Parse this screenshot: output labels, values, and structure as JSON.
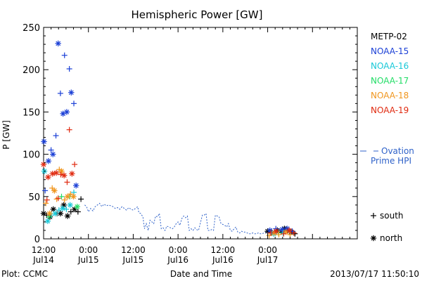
{
  "chart_data": {
    "type": "scatter",
    "title": "Hemispheric Power [GW]",
    "ylabel": "P [GW]",
    "xlabel": "Date and Time",
    "ylim": [
      0,
      250
    ],
    "yticks": [
      0,
      50,
      100,
      150,
      200,
      250
    ],
    "xlim_hours": [
      12,
      96
    ],
    "x_ticks": [
      {
        "hour": 12,
        "time": "12:00",
        "day": "Jul14"
      },
      {
        "hour": 24,
        "time": "0:00",
        "day": "Jul15"
      },
      {
        "hour": 36,
        "time": "12:00",
        "day": "Jul15"
      },
      {
        "hour": 48,
        "time": "0:00",
        "day": "Jul16"
      },
      {
        "hour": 60,
        "time": "12:00",
        "day": "Jul16"
      },
      {
        "hour": 72,
        "time": "0:00",
        "day": "Jul17"
      }
    ],
    "footer_left": "Plot: CCMC",
    "footer_right": "2013/07/17 11:50:10",
    "legend": [
      {
        "name": "METP-02",
        "color": "#000000"
      },
      {
        "name": "NOAA-15",
        "color": "#1a3fd6"
      },
      {
        "name": "NOAA-16",
        "color": "#18c8d8"
      },
      {
        "name": "NOAA-17",
        "color": "#22dd66"
      },
      {
        "name": "NOAA-18",
        "color": "#f0961e"
      },
      {
        "name": "NOAA-19",
        "color": "#e02a10"
      }
    ],
    "ovation_label_line1": "Ovation",
    "ovation_label_line2": "Prime HPI",
    "ovation_color": "#2f62c9",
    "marker_legend": {
      "south": "south",
      "north": "north"
    },
    "ovation_series": [
      [
        23.0,
        40
      ],
      [
        23.5,
        38
      ],
      [
        24.0,
        32
      ],
      [
        24.6,
        36
      ],
      [
        25.2,
        33
      ],
      [
        25.8,
        38
      ],
      [
        26.4,
        40
      ],
      [
        27.0,
        42
      ],
      [
        27.6,
        38
      ],
      [
        28.2,
        41
      ],
      [
        28.8,
        39
      ],
      [
        29.4,
        40
      ],
      [
        30.0,
        39
      ],
      [
        30.6,
        38
      ],
      [
        31.2,
        36
      ],
      [
        31.8,
        37
      ],
      [
        32.4,
        35
      ],
      [
        33.0,
        38
      ],
      [
        33.6,
        36
      ],
      [
        34.2,
        34
      ],
      [
        34.8,
        37
      ],
      [
        35.4,
        35
      ],
      [
        36.0,
        34
      ],
      [
        36.6,
        36
      ],
      [
        37.2,
        38
      ],
      [
        37.5,
        31
      ],
      [
        38.0,
        30
      ],
      [
        38.6,
        26
      ],
      [
        39.0,
        12
      ],
      [
        39.5,
        18
      ],
      [
        40.0,
        10
      ],
      [
        40.5,
        22
      ],
      [
        41.0,
        20
      ],
      [
        41.5,
        18
      ],
      [
        42.0,
        27
      ],
      [
        42.5,
        26
      ],
      [
        43.0,
        30
      ],
      [
        43.5,
        12
      ],
      [
        44.0,
        13
      ],
      [
        44.5,
        10
      ],
      [
        45.0,
        15
      ],
      [
        45.5,
        14
      ],
      [
        46.0,
        13
      ],
      [
        46.5,
        12
      ],
      [
        47.0,
        14
      ],
      [
        47.5,
        18
      ],
      [
        48.0,
        20
      ],
      [
        48.5,
        16
      ],
      [
        49.0,
        24
      ],
      [
        49.5,
        27
      ],
      [
        50.0,
        25
      ],
      [
        50.5,
        27
      ],
      [
        51.0,
        10
      ],
      [
        51.5,
        12
      ],
      [
        52.0,
        10
      ],
      [
        52.5,
        13
      ],
      [
        53.0,
        11
      ],
      [
        53.5,
        10
      ],
      [
        54.0,
        19
      ],
      [
        54.5,
        28
      ],
      [
        55.0,
        28
      ],
      [
        55.5,
        30
      ],
      [
        56.0,
        10
      ],
      [
        56.5,
        10
      ],
      [
        57.0,
        11
      ],
      [
        57.5,
        10
      ],
      [
        58.0,
        28
      ],
      [
        58.5,
        27
      ],
      [
        59.0,
        26
      ],
      [
        59.5,
        18
      ],
      [
        60.0,
        17
      ],
      [
        60.5,
        16
      ],
      [
        61.0,
        14
      ],
      [
        61.5,
        18
      ],
      [
        62.0,
        10
      ],
      [
        62.5,
        9
      ],
      [
        63.0,
        12
      ],
      [
        63.5,
        14
      ],
      [
        64.0,
        8
      ],
      [
        64.5,
        7
      ],
      [
        65.0,
        9
      ],
      [
        65.5,
        8
      ],
      [
        66.0,
        8
      ],
      [
        66.5,
        7
      ],
      [
        67.0,
        6
      ],
      [
        67.5,
        6
      ],
      [
        68.0,
        7
      ],
      [
        68.5,
        6
      ],
      [
        69.0,
        6
      ],
      [
        69.5,
        7
      ],
      [
        70.0,
        6
      ],
      [
        70.5,
        6
      ],
      [
        71.0,
        7
      ],
      [
        71.5,
        8
      ],
      [
        72.0,
        9
      ],
      [
        72.5,
        8
      ],
      [
        73.0,
        10
      ],
      [
        73.5,
        9
      ],
      [
        74.0,
        7
      ],
      [
        74.5,
        10
      ],
      [
        75.0,
        8
      ],
      [
        75.5,
        10
      ],
      [
        76.0,
        9
      ],
      [
        76.5,
        10
      ],
      [
        77.0,
        9
      ],
      [
        77.5,
        11
      ],
      [
        78.0,
        8
      ],
      [
        78.5,
        6
      ],
      [
        79.0,
        4
      ]
    ],
    "series": [
      {
        "name": "METP-02",
        "color": "#000000",
        "points": [
          {
            "x": 12.0,
            "y": 30,
            "m": "n"
          },
          {
            "x": 12.8,
            "y": 28,
            "m": "s"
          },
          {
            "x": 13.7,
            "y": 26,
            "m": "n"
          },
          {
            "x": 14.6,
            "y": 35,
            "m": "n"
          },
          {
            "x": 15.6,
            "y": 30,
            "m": "s"
          },
          {
            "x": 16.5,
            "y": 30,
            "m": "n"
          },
          {
            "x": 17.4,
            "y": 40,
            "m": "n"
          },
          {
            "x": 18.4,
            "y": 27,
            "m": "n"
          },
          {
            "x": 19.3,
            "y": 32,
            "m": "s"
          },
          {
            "x": 20.3,
            "y": 35,
            "m": "n"
          },
          {
            "x": 21.2,
            "y": 32,
            "m": "s"
          },
          {
            "x": 22.0,
            "y": 47,
            "m": "s"
          },
          {
            "x": 72.0,
            "y": 9,
            "m": "n"
          },
          {
            "x": 73.0,
            "y": 8,
            "m": "s"
          },
          {
            "x": 74.6,
            "y": 10,
            "m": "n"
          },
          {
            "x": 75.6,
            "y": 8,
            "m": "s"
          },
          {
            "x": 76.5,
            "y": 12,
            "m": "n"
          },
          {
            "x": 77.4,
            "y": 10,
            "m": "s"
          },
          {
            "x": 78.3,
            "y": 8,
            "m": "n"
          },
          {
            "x": 79.3,
            "y": 6,
            "m": "s"
          }
        ]
      },
      {
        "name": "NOAA-15",
        "color": "#1a3fd6",
        "points": [
          {
            "x": 12.1,
            "y": 115,
            "m": "n"
          },
          {
            "x": 12.4,
            "y": 57,
            "m": "s"
          },
          {
            "x": 13.3,
            "y": 92,
            "m": "n"
          },
          {
            "x": 14.0,
            "y": 105,
            "m": "s"
          },
          {
            "x": 14.5,
            "y": 100,
            "m": "n"
          },
          {
            "x": 15.3,
            "y": 122,
            "m": "s"
          },
          {
            "x": 15.9,
            "y": 231,
            "m": "n"
          },
          {
            "x": 16.5,
            "y": 172,
            "m": "s"
          },
          {
            "x": 17.2,
            "y": 148,
            "m": "n"
          },
          {
            "x": 17.6,
            "y": 217,
            "m": "s"
          },
          {
            "x": 18.2,
            "y": 150,
            "m": "n"
          },
          {
            "x": 18.9,
            "y": 201,
            "m": "s"
          },
          {
            "x": 19.4,
            "y": 173,
            "m": "n"
          },
          {
            "x": 20.1,
            "y": 160,
            "m": "s"
          },
          {
            "x": 20.7,
            "y": 63,
            "m": "n"
          },
          {
            "x": 72.6,
            "y": 10,
            "m": "n"
          },
          {
            "x": 74.2,
            "y": 12,
            "m": "s"
          },
          {
            "x": 75.9,
            "y": 11,
            "m": "n"
          },
          {
            "x": 77.2,
            "y": 12,
            "m": "n"
          },
          {
            "x": 78.6,
            "y": 9,
            "m": "s"
          }
        ]
      },
      {
        "name": "NOAA-16",
        "color": "#18c8d8",
        "points": [
          {
            "x": 12.2,
            "y": 80,
            "m": "n"
          },
          {
            "x": 13.1,
            "y": 21,
            "m": "n"
          },
          {
            "x": 14.1,
            "y": 28,
            "m": "s"
          },
          {
            "x": 15.1,
            "y": 30,
            "m": "n"
          },
          {
            "x": 16.1,
            "y": 34,
            "m": "s"
          },
          {
            "x": 17.1,
            "y": 36,
            "m": "n"
          },
          {
            "x": 18.1,
            "y": 35,
            "m": "s"
          },
          {
            "x": 19.1,
            "y": 40,
            "m": "n"
          },
          {
            "x": 20.1,
            "y": 55,
            "m": "s"
          },
          {
            "x": 73.6,
            "y": 6,
            "m": "n"
          },
          {
            "x": 76.1,
            "y": 7,
            "m": "s"
          }
        ]
      },
      {
        "name": "NOAA-17",
        "color": "#22dd66",
        "points": [
          {
            "x": 13.5,
            "y": 26,
            "m": "s"
          },
          {
            "x": 16.8,
            "y": 50,
            "m": "s"
          },
          {
            "x": 19.0,
            "y": 50,
            "m": "s"
          },
          {
            "x": 21.0,
            "y": 38,
            "m": "n"
          },
          {
            "x": 74.9,
            "y": 7,
            "m": "s"
          }
        ]
      },
      {
        "name": "NOAA-18",
        "color": "#f0961e",
        "points": [
          {
            "x": 12.6,
            "y": 42,
            "m": "s"
          },
          {
            "x": 13.6,
            "y": 30,
            "m": "n"
          },
          {
            "x": 14.3,
            "y": 60,
            "m": "s"
          },
          {
            "x": 14.9,
            "y": 57,
            "m": "n"
          },
          {
            "x": 15.5,
            "y": 47,
            "m": "s"
          },
          {
            "x": 16.2,
            "y": 82,
            "m": "s"
          },
          {
            "x": 16.8,
            "y": 80,
            "m": "n"
          },
          {
            "x": 17.6,
            "y": 46,
            "m": "s"
          },
          {
            "x": 18.4,
            "y": 50,
            "m": "n"
          },
          {
            "x": 19.2,
            "y": 53,
            "m": "s"
          },
          {
            "x": 20.0,
            "y": 50,
            "m": "n"
          },
          {
            "x": 72.4,
            "y": 4,
            "m": "s"
          },
          {
            "x": 73.7,
            "y": 7,
            "m": "n"
          },
          {
            "x": 75.0,
            "y": 5,
            "m": "s"
          },
          {
            "x": 76.9,
            "y": 8,
            "m": "n"
          },
          {
            "x": 78.0,
            "y": 5,
            "m": "s"
          }
        ]
      },
      {
        "name": "NOAA-19",
        "color": "#e02a10",
        "points": [
          {
            "x": 12.0,
            "y": 88,
            "m": "n"
          },
          {
            "x": 12.9,
            "y": 46,
            "m": "s"
          },
          {
            "x": 13.2,
            "y": 73,
            "m": "n"
          },
          {
            "x": 14.4,
            "y": 77,
            "m": "n"
          },
          {
            "x": 15.4,
            "y": 78,
            "m": "n"
          },
          {
            "x": 15.9,
            "y": 48,
            "m": "s"
          },
          {
            "x": 16.6,
            "y": 76,
            "m": "s"
          },
          {
            "x": 17.5,
            "y": 75,
            "m": "n"
          },
          {
            "x": 18.3,
            "y": 67,
            "m": "s"
          },
          {
            "x": 18.9,
            "y": 129,
            "m": "s"
          },
          {
            "x": 19.6,
            "y": 77,
            "m": "n"
          },
          {
            "x": 20.3,
            "y": 88,
            "m": "s"
          },
          {
            "x": 72.8,
            "y": 7,
            "m": "s"
          },
          {
            "x": 74.3,
            "y": 9,
            "m": "n"
          },
          {
            "x": 76.3,
            "y": 6,
            "m": "s"
          },
          {
            "x": 77.8,
            "y": 10,
            "m": "n"
          },
          {
            "x": 79.0,
            "y": 7,
            "m": "s"
          }
        ]
      }
    ]
  }
}
